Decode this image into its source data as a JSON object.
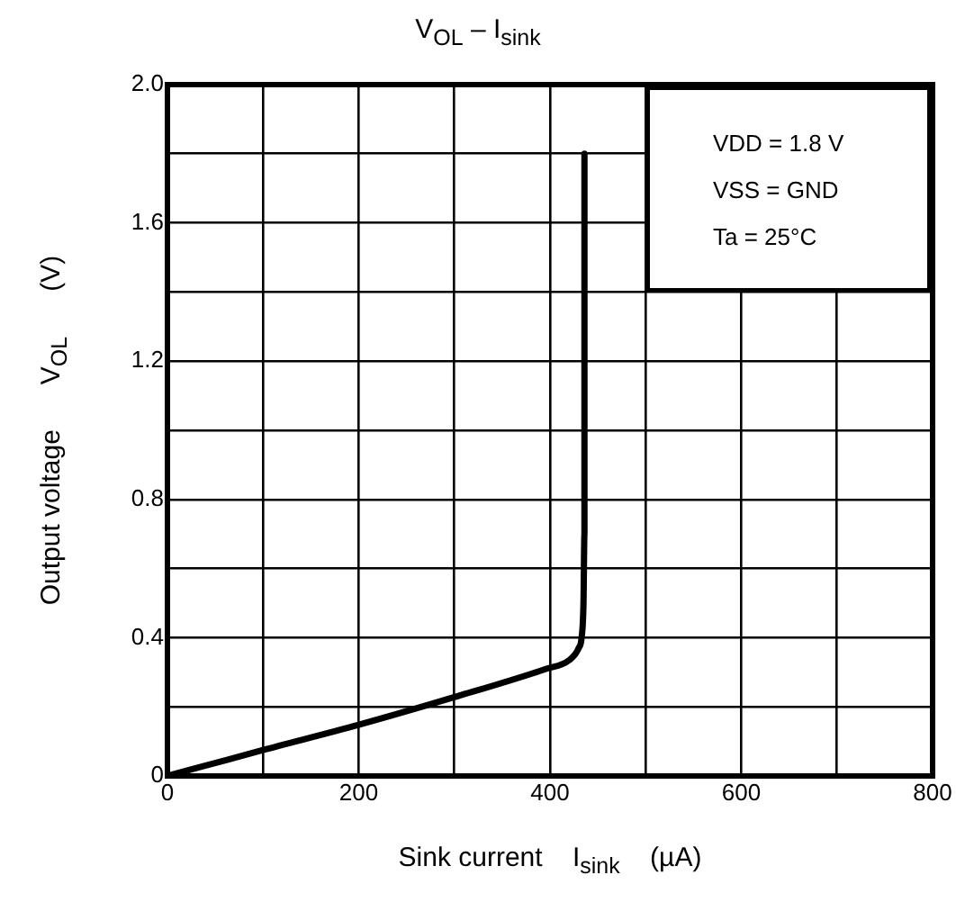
{
  "chart_data": {
    "type": "line",
    "title": "V$_{OL}$ – I$_{sink}$",
    "xlabel": "Sink current    I$_{sink}$    (µA)",
    "ylabel": "Output voltage      V$_{OL}$      (V)",
    "x": [
      0,
      100,
      200,
      300,
      396,
      420,
      430,
      433,
      435,
      436,
      436
    ],
    "series": [
      {
        "color": "#000000",
        "values": [
          0,
          0.075,
          0.148,
          0.228,
          0.31,
          0.335,
          0.37,
          0.4,
          0.5,
          0.7,
          1.8
        ]
      }
    ],
    "xlim": [
      0,
      800
    ],
    "xticks": [
      0,
      {
        "value": 100,
        "label": null
      },
      200,
      {
        "value": 300,
        "label": null
      },
      400,
      {
        "value": 500,
        "label": null
      },
      600,
      {
        "value": 700,
        "label": null
      },
      800
    ],
    "ylim": [
      0,
      2
    ],
    "yticks": [
      0,
      {
        "value": 0.2,
        "label": null
      },
      0.4,
      {
        "value": 0.6,
        "label": null
      },
      0.8,
      {
        "value": 1.0,
        "label": null
      },
      1.2,
      {
        "value": 1.4,
        "label": null
      },
      1.6,
      {
        "value": 1.8,
        "label": null
      },
      {
        "value": 2,
        "label": "2.0"
      }
    ],
    "grid": true,
    "legend": false,
    "marker": "none",
    "line_style": "solid",
    "annotations": [
      "VDD = 1.8 V",
      "VSS = GND",
      "Ta = 25°C"
    ]
  }
}
